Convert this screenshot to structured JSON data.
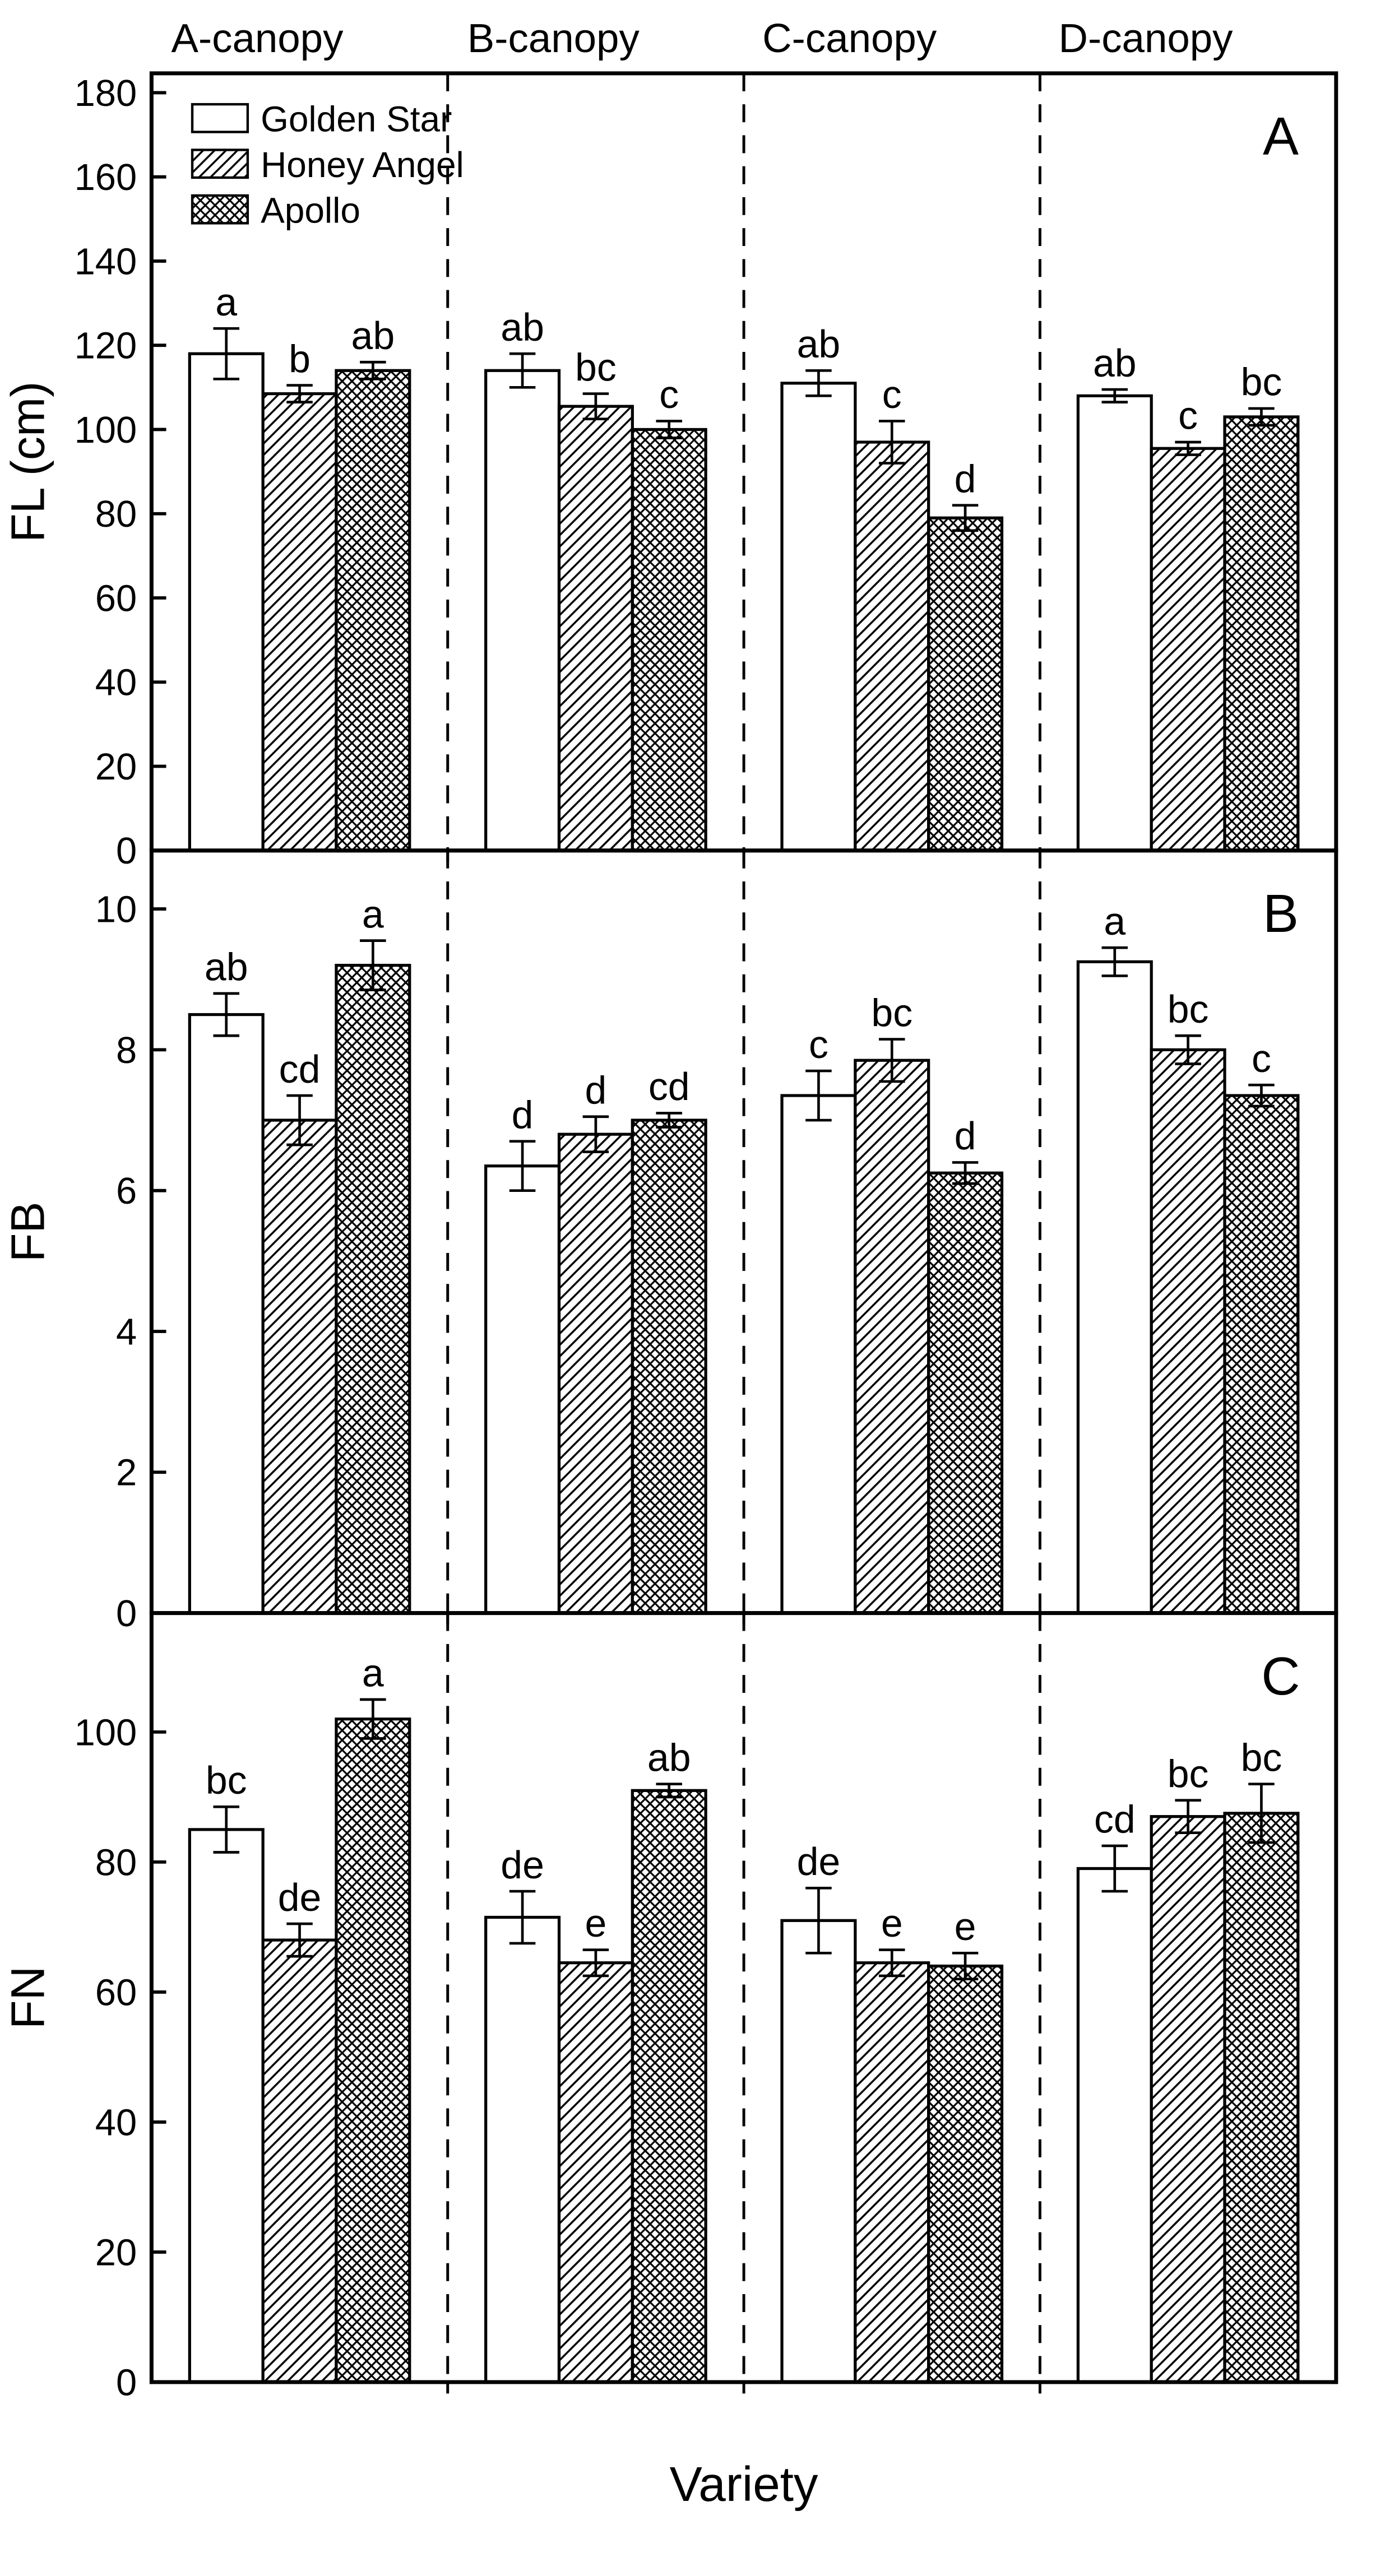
{
  "figure": {
    "background": "#ffffff",
    "ink": "#000000",
    "xlabel": "Variety",
    "canopy_headers": [
      "A-canopy",
      "B-canopy",
      "C-canopy",
      "D-canopy"
    ],
    "legend": {
      "position": "top-left-inside-panel-A",
      "items": [
        {
          "label": "Golden Star",
          "fill": "solid-white"
        },
        {
          "label": "Honey Angel",
          "fill": "diagonal-hatch"
        },
        {
          "label": "Apollo",
          "fill": "cross-hatch"
        }
      ]
    }
  },
  "chart_data": [
    {
      "type": "bar",
      "panel_label": "A",
      "ylabel": "FL (cm)",
      "ylim": [
        0,
        184.6
      ],
      "yticks": [
        0,
        20,
        40,
        60,
        80,
        100,
        120,
        140,
        160,
        180
      ],
      "categories": [
        "A-canopy",
        "B-canopy",
        "C-canopy",
        "D-canopy"
      ],
      "series": [
        {
          "name": "Golden Star",
          "pattern": "solid-white",
          "values": [
            118,
            114,
            111,
            108
          ],
          "errors": [
            6,
            4,
            3,
            1.5
          ],
          "sig": [
            "a",
            "ab",
            "ab",
            "ab"
          ]
        },
        {
          "name": "Honey Angel",
          "pattern": "diagonal-hatch",
          "values": [
            108.5,
            105.5,
            97,
            95.5
          ],
          "errors": [
            2,
            3,
            5,
            1.5
          ],
          "sig": [
            "b",
            "bc",
            "c",
            "c"
          ]
        },
        {
          "name": "Apollo",
          "pattern": "cross-hatch",
          "values": [
            114,
            100,
            79,
            103
          ],
          "errors": [
            2,
            2,
            3,
            2
          ],
          "sig": [
            "ab",
            "c",
            "d",
            "bc"
          ]
        }
      ]
    },
    {
      "type": "bar",
      "panel_label": "B",
      "ylabel": "FB",
      "ylim": [
        0,
        10.83
      ],
      "yticks": [
        0,
        2,
        4,
        6,
        8,
        10
      ],
      "categories": [
        "A-canopy",
        "B-canopy",
        "C-canopy",
        "D-canopy"
      ],
      "series": [
        {
          "name": "Golden Star",
          "pattern": "solid-white",
          "values": [
            8.5,
            6.35,
            7.35,
            9.25
          ],
          "errors": [
            0.3,
            0.35,
            0.35,
            0.2
          ],
          "sig": [
            "ab",
            "d",
            "c",
            "a"
          ]
        },
        {
          "name": "Honey Angel",
          "pattern": "diagonal-hatch",
          "values": [
            7.0,
            6.8,
            7.85,
            8.0
          ],
          "errors": [
            0.35,
            0.25,
            0.3,
            0.2
          ],
          "sig": [
            "cd",
            "d",
            "bc",
            "bc"
          ]
        },
        {
          "name": "Apollo",
          "pattern": "cross-hatch",
          "values": [
            9.2,
            7.0,
            6.25,
            7.35
          ],
          "errors": [
            0.35,
            0.1,
            0.15,
            0.15
          ],
          "sig": [
            "a",
            "cd",
            "d",
            "c"
          ]
        }
      ]
    },
    {
      "type": "bar",
      "panel_label": "C",
      "ylabel": "FN",
      "ylim": [
        0,
        118.3
      ],
      "yticks": [
        0,
        20,
        40,
        60,
        80,
        100
      ],
      "categories": [
        "A-canopy",
        "B-canopy",
        "C-canopy",
        "D-canopy"
      ],
      "series": [
        {
          "name": "Golden Star",
          "pattern": "solid-white",
          "values": [
            85,
            71.5,
            71,
            79
          ],
          "errors": [
            3.5,
            4,
            5,
            3.5
          ],
          "sig": [
            "bc",
            "de",
            "de",
            "cd"
          ]
        },
        {
          "name": "Honey Angel",
          "pattern": "diagonal-hatch",
          "values": [
            68,
            64.5,
            64.5,
            87
          ],
          "errors": [
            2.5,
            2,
            2,
            2.5
          ],
          "sig": [
            "de",
            "e",
            "e",
            "bc"
          ]
        },
        {
          "name": "Apollo",
          "pattern": "cross-hatch",
          "values": [
            102,
            91,
            64,
            87.5
          ],
          "errors": [
            3,
            1,
            2,
            4.5
          ],
          "sig": [
            "a",
            "ab",
            "e",
            "bc"
          ]
        }
      ]
    }
  ]
}
